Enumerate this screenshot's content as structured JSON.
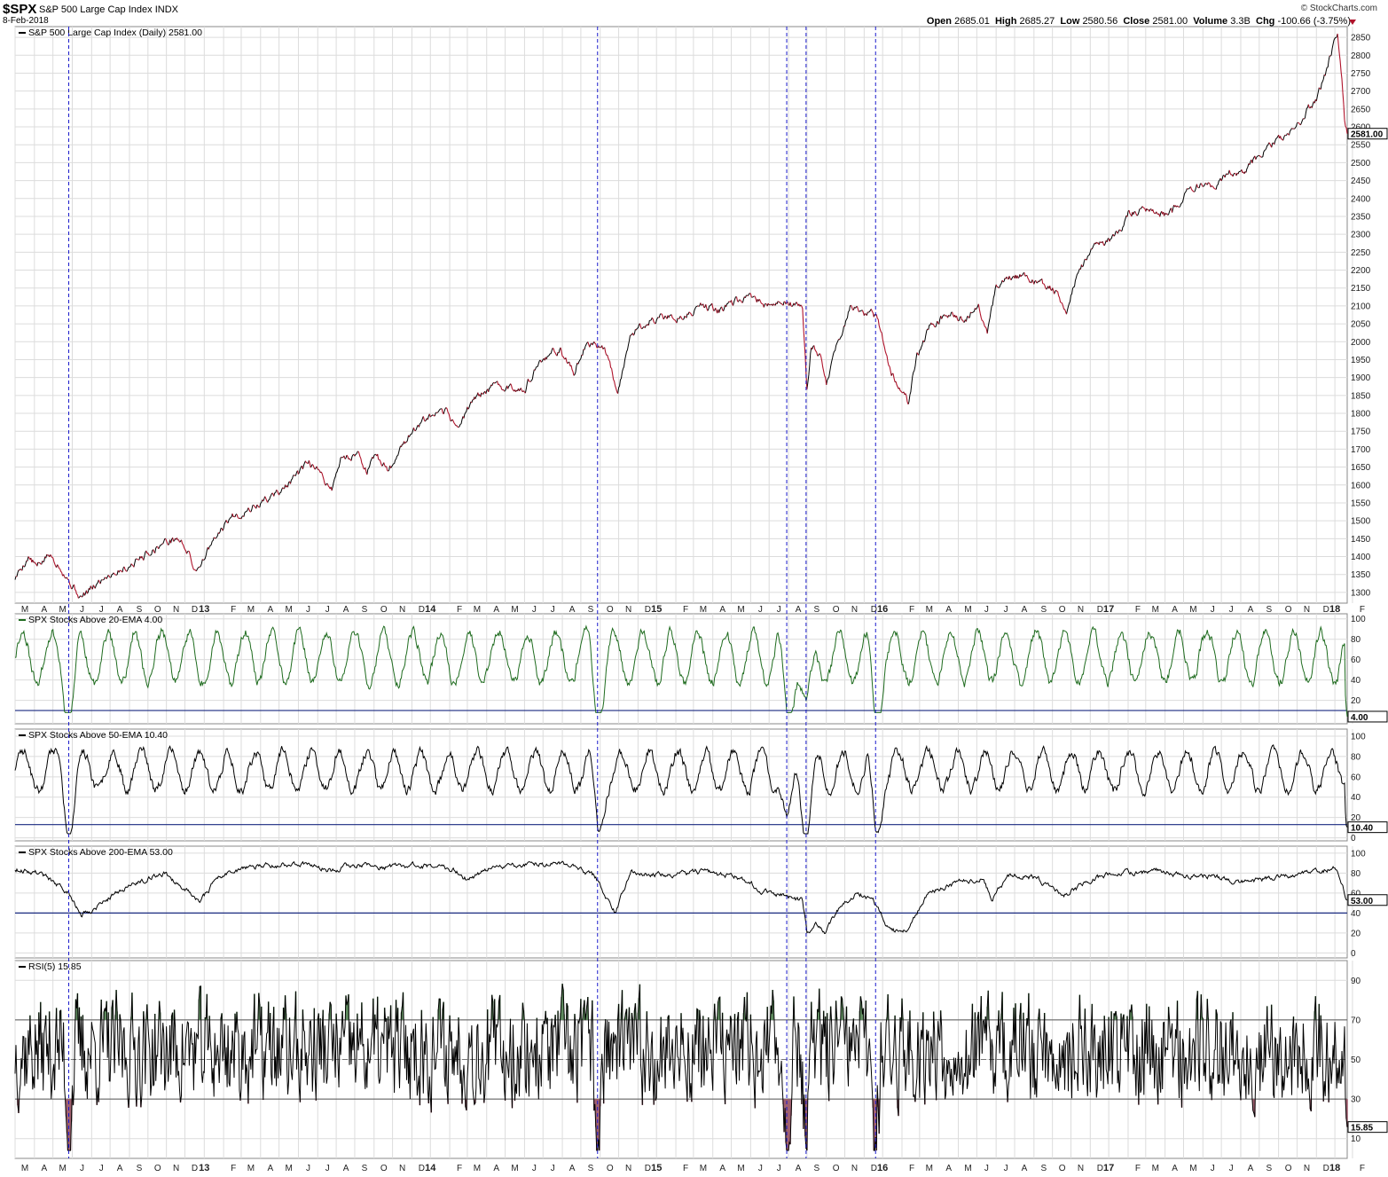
{
  "header": {
    "symbol": "$SPX",
    "name": "S&P 500 Large Cap Index",
    "exchange": "INDX",
    "date": "8-Feb-2018",
    "brand": "© StockCharts.com",
    "open_label": "Open",
    "open": "2685.01",
    "high_label": "High",
    "high": "2685.27",
    "low_label": "Low",
    "low": "2580.56",
    "close_label": "Close",
    "close": "2581.00",
    "volume_label": "Volume",
    "volume": "3.3B",
    "chg_label": "Chg",
    "chg": "-100.66 (-3.75%)"
  },
  "colors": {
    "up": "#000000",
    "down": "#b0142c",
    "grid": "#dcdcdc",
    "vline": "#1a1acc",
    "hline": "#1a2a80",
    "green_line": "#1e6b1e",
    "rsi_fill": "#5e8c5e",
    "rsi_fill_low": "#a06070"
  },
  "chart_data": [
    {
      "type": "line",
      "title": "S&P 500 Large Cap Index (Daily) 2581.00",
      "ylim": [
        1270,
        2880
      ],
      "yticks": [
        1300,
        1350,
        1400,
        1450,
        1500,
        1550,
        1600,
        1650,
        1700,
        1750,
        1800,
        1850,
        1900,
        1950,
        2000,
        2050,
        2100,
        2150,
        2200,
        2250,
        2300,
        2350,
        2400,
        2450,
        2500,
        2550,
        2600,
        2650,
        2700,
        2750,
        2800,
        2850
      ],
      "last_value": "2581.00",
      "anchors": [
        [
          0,
          1340
        ],
        [
          15,
          1400
        ],
        [
          25,
          1370
        ],
        [
          38,
          1405
        ],
        [
          50,
          1380
        ],
        [
          62,
          1330
        ],
        [
          75,
          1285
        ],
        [
          85,
          1305
        ],
        [
          105,
          1350
        ],
        [
          130,
          1375
        ],
        [
          150,
          1410
        ],
        [
          170,
          1440
        ],
        [
          185,
          1450
        ],
        [
          195,
          1420
        ],
        [
          205,
          1360
        ],
        [
          220,
          1420
        ],
        [
          245,
          1510
        ],
        [
          265,
          1530
        ],
        [
          290,
          1565
        ],
        [
          305,
          1590
        ],
        [
          320,
          1625
        ],
        [
          335,
          1660
        ],
        [
          350,
          1620
        ],
        [
          360,
          1590
        ],
        [
          370,
          1670
        ],
        [
          390,
          1690
        ],
        [
          400,
          1640
        ],
        [
          410,
          1680
        ],
        [
          425,
          1640
        ],
        [
          440,
          1715
        ],
        [
          460,
          1770
        ],
        [
          475,
          1790
        ],
        [
          490,
          1800
        ],
        [
          505,
          1760
        ],
        [
          520,
          1840
        ],
        [
          535,
          1860
        ],
        [
          550,
          1880
        ],
        [
          565,
          1870
        ],
        [
          580,
          1875
        ],
        [
          600,
          1950
        ],
        [
          620,
          1980
        ],
        [
          635,
          1910
        ],
        [
          650,
          2000
        ],
        [
          670,
          1985
        ],
        [
          685,
          1865
        ],
        [
          700,
          2020
        ],
        [
          720,
          2060
        ],
        [
          740,
          2070
        ],
        [
          760,
          2070
        ],
        [
          780,
          2100
        ],
        [
          800,
          2090
        ],
        [
          820,
          2110
        ],
        [
          840,
          2120
        ],
        [
          860,
          2095
        ],
        [
          880,
          2110
        ],
        [
          895,
          2090
        ],
        [
          900,
          1865
        ],
        [
          905,
          1990
        ],
        [
          915,
          1960
        ],
        [
          922,
          1880
        ],
        [
          935,
          2000
        ],
        [
          950,
          2100
        ],
        [
          965,
          2080
        ],
        [
          980,
          2070
        ],
        [
          995,
          1910
        ],
        [
          1005,
          1880
        ],
        [
          1015,
          1830
        ],
        [
          1025,
          1960
        ],
        [
          1040,
          2040
        ],
        [
          1060,
          2080
        ],
        [
          1080,
          2060
        ],
        [
          1095,
          2110
        ],
        [
          1105,
          2020
        ],
        [
          1115,
          2150
        ],
        [
          1130,
          2180
        ],
        [
          1150,
          2180
        ],
        [
          1165,
          2160
        ],
        [
          1180,
          2150
        ],
        [
          1195,
          2090
        ],
        [
          1210,
          2200
        ],
        [
          1230,
          2270
        ],
        [
          1250,
          2290
        ],
        [
          1265,
          2360
        ],
        [
          1280,
          2370
        ],
        [
          1300,
          2350
        ],
        [
          1315,
          2360
        ],
        [
          1330,
          2420
        ],
        [
          1350,
          2440
        ],
        [
          1365,
          2430
        ],
        [
          1380,
          2480
        ],
        [
          1395,
          2470
        ],
        [
          1410,
          2510
        ],
        [
          1425,
          2550
        ],
        [
          1440,
          2570
        ],
        [
          1455,
          2590
        ],
        [
          1470,
          2650
        ],
        [
          1480,
          2680
        ],
        [
          1490,
          2750
        ],
        [
          1500,
          2850
        ],
        [
          1503,
          2870
        ],
        [
          1508,
          2730
        ],
        [
          1511,
          2620
        ],
        [
          1514,
          2581
        ]
      ]
    },
    {
      "type": "line",
      "title": "SPX Stocks Above 20-EMA 4.00",
      "ylim": [
        0,
        100
      ],
      "yticks": [
        20,
        40,
        60,
        80,
        100
      ],
      "hline": 10,
      "last_value": "4.00",
      "seed": 11,
      "mean": 62,
      "amp": 26,
      "min": 8,
      "max": 95,
      "end": 4
    },
    {
      "type": "line",
      "title": "SPX Stocks Above 50-EMA 10.40",
      "ylim": [
        0,
        100
      ],
      "yticks": [
        0,
        20,
        40,
        60,
        80,
        100
      ],
      "hline": 13,
      "last_value": "10.40",
      "seed": 23,
      "mean": 66,
      "amp": 20,
      "min": 4,
      "max": 94,
      "end": 10.4
    },
    {
      "type": "line",
      "title": "SPX Stocks Above 200-EMA 53.00",
      "ylim": [
        0,
        100
      ],
      "yticks": [
        0,
        20,
        40,
        60,
        80,
        100
      ],
      "hline": 40,
      "last_value": "53.00",
      "anchors": [
        [
          0,
          84
        ],
        [
          30,
          80
        ],
        [
          60,
          60
        ],
        [
          75,
          38
        ],
        [
          90,
          45
        ],
        [
          110,
          58
        ],
        [
          140,
          72
        ],
        [
          170,
          80
        ],
        [
          200,
          60
        ],
        [
          210,
          52
        ],
        [
          230,
          75
        ],
        [
          260,
          86
        ],
        [
          300,
          88
        ],
        [
          330,
          90
        ],
        [
          360,
          82
        ],
        [
          380,
          88
        ],
        [
          420,
          86
        ],
        [
          460,
          88
        ],
        [
          500,
          84
        ],
        [
          515,
          72
        ],
        [
          540,
          86
        ],
        [
          580,
          88
        ],
        [
          620,
          90
        ],
        [
          640,
          84
        ],
        [
          660,
          76
        ],
        [
          682,
          40
        ],
        [
          700,
          80
        ],
        [
          740,
          78
        ],
        [
          780,
          82
        ],
        [
          820,
          76
        ],
        [
          850,
          62
        ],
        [
          880,
          55
        ],
        [
          895,
          52
        ],
        [
          900,
          20
        ],
        [
          910,
          30
        ],
        [
          920,
          22
        ],
        [
          935,
          42
        ],
        [
          955,
          60
        ],
        [
          975,
          54
        ],
        [
          990,
          28
        ],
        [
          1000,
          22
        ],
        [
          1015,
          26
        ],
        [
          1025,
          40
        ],
        [
          1040,
          62
        ],
        [
          1070,
          70
        ],
        [
          1100,
          74
        ],
        [
          1110,
          54
        ],
        [
          1130,
          78
        ],
        [
          1160,
          76
        ],
        [
          1190,
          56
        ],
        [
          1200,
          62
        ],
        [
          1230,
          76
        ],
        [
          1260,
          80
        ],
        [
          1300,
          82
        ],
        [
          1330,
          76
        ],
        [
          1360,
          78
        ],
        [
          1390,
          70
        ],
        [
          1420,
          74
        ],
        [
          1450,
          78
        ],
        [
          1480,
          82
        ],
        [
          1500,
          84
        ],
        [
          1508,
          70
        ],
        [
          1514,
          53
        ]
      ]
    },
    {
      "type": "line",
      "title": "RSI(5) 15.85",
      "ylim": [
        0,
        100
      ],
      "yticks": [
        10,
        30,
        50,
        70,
        90
      ],
      "overbought": 70,
      "oversold": 30,
      "midline": 50,
      "last_value": "15.85",
      "seed": 37
    }
  ],
  "x_axis": {
    "labels": [
      [
        "M",
        0
      ],
      [
        "A",
        22
      ],
      [
        "M",
        43
      ],
      [
        "J",
        65
      ],
      [
        "J",
        87
      ],
      [
        "A",
        108
      ],
      [
        "S",
        130
      ],
      [
        "O",
        151
      ],
      [
        "N",
        172
      ],
      [
        "D",
        193
      ],
      [
        "13",
        215
      ],
      [
        "F",
        237
      ],
      [
        "M",
        257
      ],
      [
        "A",
        279
      ],
      [
        "M",
        300
      ],
      [
        "J",
        322
      ],
      [
        "J",
        344
      ],
      [
        "A",
        365
      ],
      [
        "S",
        386
      ],
      [
        "O",
        408
      ],
      [
        "N",
        429
      ],
      [
        "D",
        451
      ],
      [
        "14",
        472
      ],
      [
        "F",
        494
      ],
      [
        "M",
        514
      ],
      [
        "A",
        536
      ],
      [
        "M",
        557
      ],
      [
        "J",
        579
      ],
      [
        "J",
        600
      ],
      [
        "A",
        622
      ],
      [
        "S",
        643
      ],
      [
        "O",
        665
      ],
      [
        "N",
        686
      ],
      [
        "D",
        708
      ],
      [
        "15",
        729
      ],
      [
        "F",
        751
      ],
      [
        "M",
        771
      ],
      [
        "A",
        793
      ],
      [
        "M",
        814
      ],
      [
        "J",
        836
      ],
      [
        "J",
        857
      ],
      [
        "A",
        879
      ],
      [
        "S",
        900
      ],
      [
        "O",
        922
      ],
      [
        "N",
        943
      ],
      [
        "D",
        965
      ],
      [
        "16",
        986
      ],
      [
        "F",
        1008
      ],
      [
        "M",
        1028
      ],
      [
        "A",
        1050
      ],
      [
        "M",
        1072
      ],
      [
        "J",
        1093
      ],
      [
        "J",
        1115
      ],
      [
        "A",
        1136
      ],
      [
        "S",
        1158
      ],
      [
        "O",
        1179
      ],
      [
        "N",
        1200
      ],
      [
        "D",
        1222
      ],
      [
        "17",
        1243
      ],
      [
        "F",
        1265
      ],
      [
        "M",
        1285
      ],
      [
        "A",
        1307
      ],
      [
        "M",
        1328
      ],
      [
        "J",
        1350
      ],
      [
        "J",
        1371
      ],
      [
        "A",
        1393
      ],
      [
        "S",
        1414
      ],
      [
        "O",
        1436
      ],
      [
        "N",
        1457
      ],
      [
        "D",
        1479
      ],
      [
        "18",
        1500
      ],
      [
        "F",
        1520
      ]
    ]
  },
  "event_lines": [
    61,
    662,
    877,
    899,
    978
  ]
}
